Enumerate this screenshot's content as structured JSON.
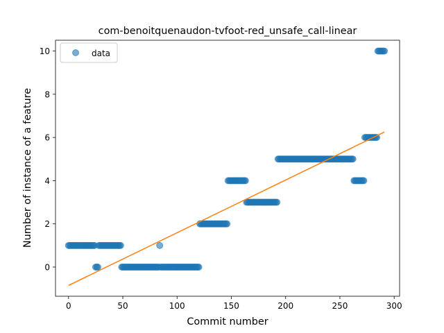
{
  "chart_data": {
    "type": "scatter",
    "title": "com-benoitquenaudon-tvfoot-red_unsafe_call-linear",
    "xlabel": "Commit number",
    "ylabel": "Number of instance of a feature",
    "xlim": [
      -12,
      305
    ],
    "ylim": [
      -1.35,
      10.5
    ],
    "xticks": [
      0,
      50,
      100,
      150,
      200,
      250,
      300
    ],
    "yticks": [
      0,
      2,
      4,
      6,
      8,
      10
    ],
    "legend": {
      "label": "data",
      "placement": "top-left"
    },
    "point_color": "#1f77b4",
    "line_color": "#ff7f0e",
    "segments": [
      {
        "x_start": 0,
        "x_end": 24,
        "y": 1
      },
      {
        "x_start": 25,
        "x_end": 27,
        "y": 0
      },
      {
        "x_start": 28,
        "x_end": 48,
        "y": 1
      },
      {
        "x_start": 49,
        "x_end": 83,
        "y": 0
      },
      {
        "x_start": 84,
        "x_end": 84,
        "y": 1
      },
      {
        "x_start": 85,
        "x_end": 120,
        "y": 0
      },
      {
        "x_start": 121,
        "x_end": 146,
        "y": 2
      },
      {
        "x_start": 147,
        "x_end": 163,
        "y": 4
      },
      {
        "x_start": 164,
        "x_end": 192,
        "y": 3
      },
      {
        "x_start": 193,
        "x_end": 262,
        "y": 5
      },
      {
        "x_start": 263,
        "x_end": 272,
        "y": 4
      },
      {
        "x_start": 273,
        "x_end": 284,
        "y": 6
      },
      {
        "x_start": 285,
        "x_end": 291,
        "y": 10
      }
    ],
    "fit_line": {
      "x": [
        0,
        291
      ],
      "y": [
        -0.85,
        6.25
      ]
    }
  }
}
